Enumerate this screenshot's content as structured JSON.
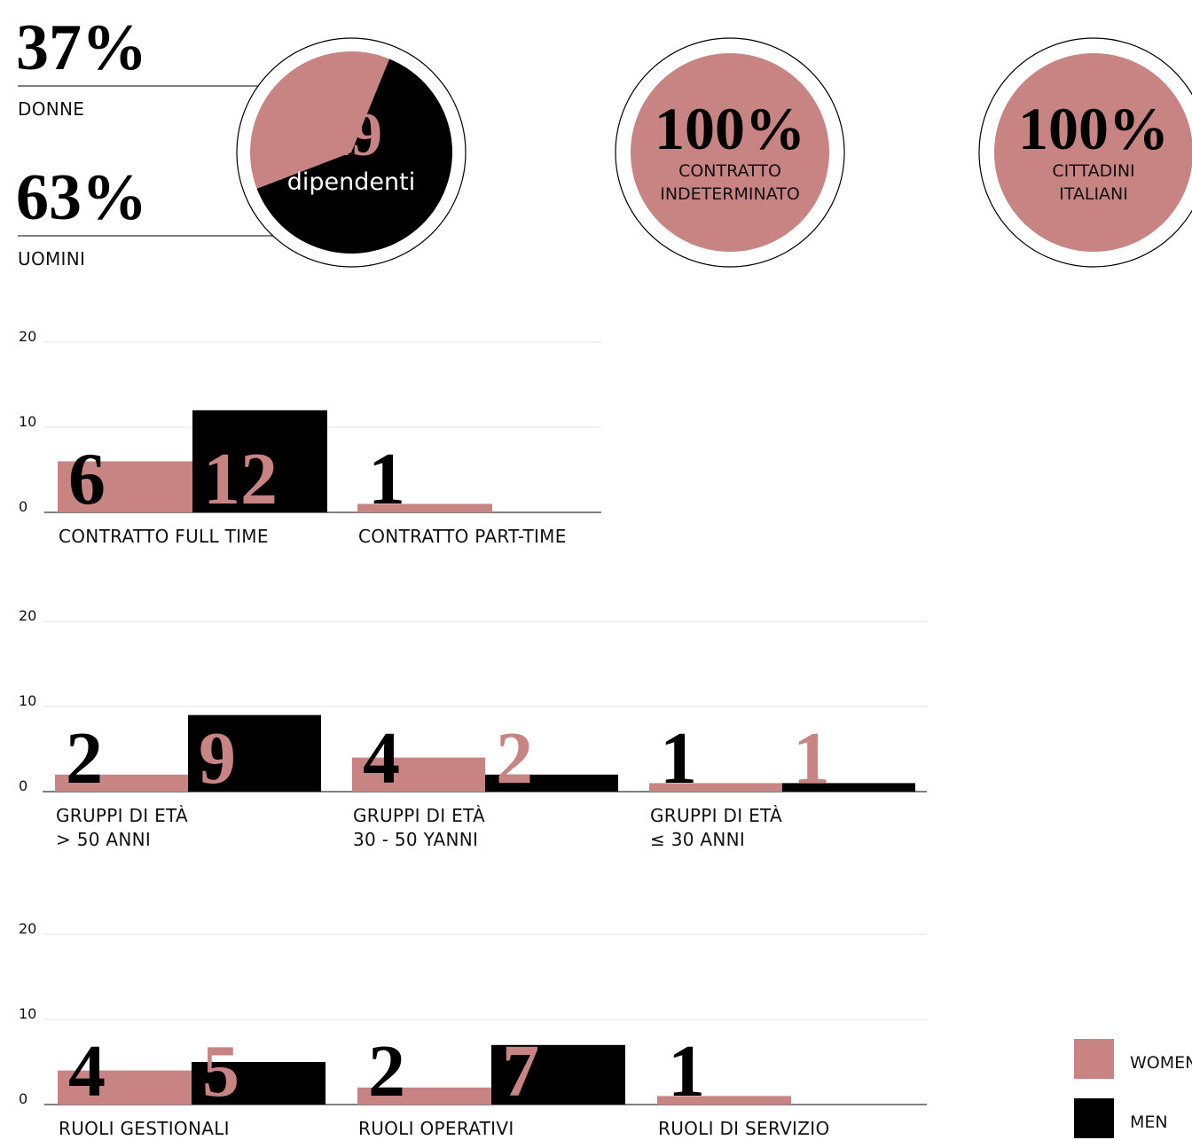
{
  "chart_data": [
    {
      "type": "pie",
      "categories": [
        "DONNE",
        "UOMINI"
      ],
      "values": [
        37,
        63
      ],
      "value_labels": [
        "37%",
        "63%"
      ],
      "colors": [
        "#c78482",
        "#000000"
      ],
      "total": "19",
      "total_label": "dipendenti"
    },
    {
      "type": "bar",
      "categories": [
        "CONTRATTO FULL TIME",
        "CONTRATTO PART-TIME"
      ],
      "series": [
        {
          "color": "#c78482",
          "values": [
            6,
            1
          ]
        },
        {
          "color": "#000000",
          "values": [
            12,
            null
          ]
        }
      ],
      "ylim": [
        0,
        20
      ],
      "yticks": [
        0,
        10,
        20
      ],
      "grid": true
    },
    {
      "type": "bar",
      "categories": [
        "GRUPPI DI ETÀ\n> 50 ANNI",
        "GRUPPI DI ETÀ\n30 - 50 YANNI",
        "GRUPPI DI ETÀ\n≤ 30 ANNI"
      ],
      "series": [
        {
          "color": "#c78482",
          "values": [
            2,
            4,
            1
          ]
        },
        {
          "color": "#000000",
          "values": [
            9,
            2,
            1
          ]
        }
      ],
      "ylim": [
        0,
        20
      ],
      "yticks": [
        0,
        10,
        20
      ],
      "grid": true
    },
    {
      "type": "bar",
      "categories": [
        "RUOLI GESTIONALI",
        "RUOLI OPERATIVI",
        "RUOLI DI SERVIZIO"
      ],
      "series": [
        {
          "name": "WOMEN",
          "color": "#c78482",
          "values": [
            4,
            2,
            1
          ]
        },
        {
          "name": "MEN",
          "color": "#000000",
          "values": [
            5,
            7,
            null
          ]
        }
      ],
      "ylim": [
        0,
        20
      ],
      "yticks": [
        0,
        10,
        20
      ],
      "grid": true,
      "legend": "bottom-right"
    }
  ],
  "highlights": [
    {
      "value_label": "100%",
      "label": "CONTRATTO\nINDETERMINATO",
      "color": "#c78482"
    },
    {
      "value_label": "100%",
      "label": "CITTADINI\nITALIANI",
      "color": "#c78482"
    }
  ]
}
